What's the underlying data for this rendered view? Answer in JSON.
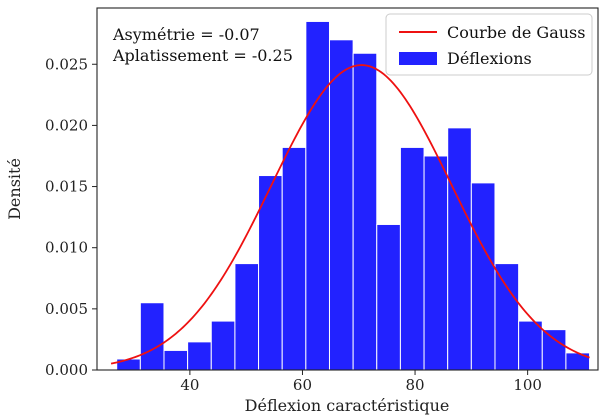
{
  "chart_data": {
    "type": "bar",
    "title": "",
    "xlabel": "Déflexion caractéristique",
    "ylabel": "Densité",
    "xlim": [
      23.5,
      112.5
    ],
    "ylim": [
      0,
      0.0296
    ],
    "xticks": [
      40,
      60,
      80,
      100
    ],
    "xtick_labels": [
      "40",
      "60",
      "80",
      "100"
    ],
    "yticks": [
      0.0,
      0.005,
      0.01,
      0.015,
      0.02,
      0.025
    ],
    "ytick_labels": [
      "0.000",
      "0.005",
      "0.010",
      "0.015",
      "0.020",
      "0.025"
    ],
    "histogram": {
      "name": "Déflexions",
      "color": "#2222ff",
      "bin_edges": [
        27.0,
        31.2,
        35.4,
        39.6,
        43.8,
        48.0,
        52.2,
        56.4,
        60.6,
        64.8,
        69.0,
        73.2,
        77.4,
        81.6,
        85.8,
        90.0,
        94.2,
        98.4,
        102.6,
        106.8,
        111.0
      ],
      "density": [
        0.0009,
        0.0055,
        0.0016,
        0.0023,
        0.004,
        0.0087,
        0.0159,
        0.0182,
        0.0285,
        0.027,
        0.0259,
        0.0119,
        0.0182,
        0.0175,
        0.0198,
        0.0153,
        0.0087,
        0.004,
        0.0033,
        0.0014
      ]
    },
    "gauss_curve": {
      "name": "Courbe de Gauss",
      "color": "#ee1111",
      "mean": 70.5,
      "std": 16.0,
      "x_range": [
        26.0,
        111.0
      ]
    },
    "annotations": [
      "Asymétrie = -0.07",
      "Aplatissement = -0.25"
    ],
    "legend_placement": "top-right",
    "grid": false
  }
}
